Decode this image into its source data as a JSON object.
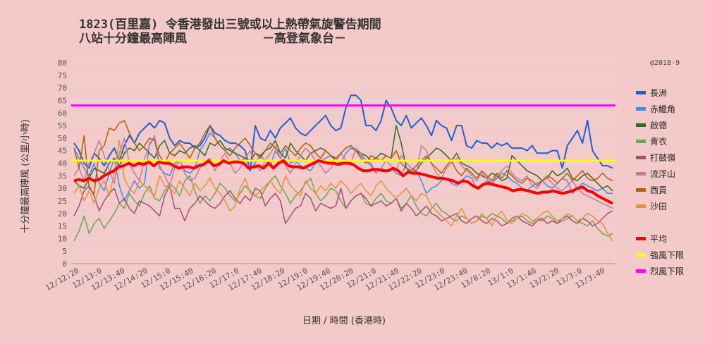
{
  "chart_data": {
    "type": "line",
    "title": "1823(百里嘉) 令香港發出三號或以上熱帶氣旋警告期間",
    "subtitle": "八站十分鐘最高陣風",
    "source": "－高登氣象台－",
    "copyright": "@2018-9",
    "xlabel": "日期 / 時間 (香港時)",
    "ylabel": "十分鐘最高陣風 (公里/小時)",
    "ylim": [
      0,
      80
    ],
    "yticks": [
      0,
      5,
      10,
      15,
      20,
      25,
      30,
      35,
      40,
      45,
      50,
      55,
      60,
      65,
      70,
      75,
      80
    ],
    "grid": true,
    "legend_position": "right",
    "xticks": [
      "12/12:20",
      "12/13:0",
      "12/13:40",
      "12/14:20",
      "12/15:0",
      "12/15:40",
      "12/16:20",
      "12/17:0",
      "12/17:40",
      "12/18:20",
      "12/19:0",
      "12/19:40",
      "12/20:20",
      "12/21:0",
      "12/21:40",
      "12/22:20",
      "12/23:0",
      "12/23:40",
      "13/0:20",
      "13/1:0",
      "13/1:40",
      "13/2:20",
      "13/3:0",
      "13/3:40"
    ],
    "series": [
      {
        "name": "長洲",
        "color": "#1f5fd6",
        "width": 2,
        "values": [
          48,
          45,
          40,
          38,
          44,
          42,
          39,
          43,
          46,
          41,
          47,
          51,
          48,
          52,
          54,
          56,
          54,
          57,
          56,
          50,
          47,
          49,
          48,
          48,
          46,
          47,
          50,
          55,
          52,
          51,
          49,
          48,
          48,
          47,
          45,
          37,
          55,
          50,
          49,
          53,
          50,
          54,
          56,
          58,
          54,
          52,
          51,
          53,
          55,
          57,
          59,
          55,
          53,
          54,
          62,
          67,
          67,
          65,
          55,
          55,
          53,
          57,
          65,
          62,
          57,
          55,
          59,
          54,
          56,
          58,
          55,
          51,
          57,
          55,
          54,
          49,
          55,
          55,
          47,
          46,
          49,
          48,
          48,
          46,
          48,
          47,
          48,
          46,
          46,
          46,
          45,
          47,
          44,
          44,
          44,
          45,
          45,
          38,
          47,
          50,
          53,
          48,
          57,
          45,
          42,
          39,
          39,
          38
        ]
      },
      {
        "name": "赤鱲角",
        "color": "#4a86e8",
        "width": 1.5,
        "values": [
          46,
          42,
          38,
          35,
          40,
          32,
          29,
          36,
          42,
          31,
          25,
          29,
          33,
          30,
          32,
          48,
          50,
          38,
          36,
          35,
          40,
          41,
          37,
          36,
          38,
          45,
          48,
          52,
          50,
          47,
          45,
          46,
          44,
          41,
          42,
          38,
          40,
          43,
          41,
          39,
          45,
          42,
          46,
          40,
          41,
          39,
          38,
          37,
          40,
          41,
          42,
          43,
          41,
          40,
          44,
          46,
          45,
          43,
          41,
          39,
          36,
          38,
          37,
          38,
          36,
          35,
          40,
          38,
          37,
          33,
          28,
          30,
          31,
          33,
          34,
          32,
          31,
          33,
          35,
          34,
          30,
          31,
          33,
          32,
          34,
          36,
          35,
          33,
          32,
          30,
          29,
          31,
          32,
          33,
          31,
          30,
          32,
          34,
          33,
          28,
          30,
          32,
          31,
          30,
          29,
          30,
          28,
          28
        ]
      },
      {
        "name": "啟德",
        "color": "#2e6b1f",
        "width": 1.5,
        "values": [
          33,
          31,
          30,
          34,
          38,
          37,
          36,
          40,
          42,
          39,
          44,
          46,
          45,
          48,
          46,
          44,
          42,
          47,
          49,
          44,
          43,
          45,
          44,
          46,
          47,
          45,
          43,
          48,
          47,
          49,
          46,
          45,
          44,
          43,
          42,
          41,
          44,
          43,
          45,
          46,
          49,
          44,
          42,
          48,
          45,
          43,
          41,
          44,
          45,
          46,
          45,
          43,
          42,
          44,
          46,
          47,
          45,
          44,
          43,
          41,
          42,
          44,
          43,
          42,
          55,
          48,
          38,
          36,
          37,
          40,
          42,
          44,
          46,
          45,
          43,
          41,
          44,
          40,
          39,
          38,
          36,
          35,
          34,
          36,
          35,
          33,
          34,
          43,
          41,
          39,
          37,
          36,
          35,
          33,
          34,
          37,
          35,
          36,
          38,
          34,
          33,
          35,
          36,
          34,
          32,
          30,
          31,
          29
        ]
      },
      {
        "name": "青衣",
        "color": "#6aa84f",
        "width": 1.5,
        "values": [
          9,
          13,
          19,
          12,
          16,
          18,
          14,
          17,
          20,
          24,
          22,
          28,
          25,
          23,
          28,
          31,
          26,
          25,
          29,
          32,
          30,
          27,
          33,
          35,
          29,
          24,
          27,
          25,
          28,
          32,
          30,
          27,
          25,
          28,
          31,
          29,
          27,
          26,
          30,
          33,
          35,
          31,
          28,
          24,
          27,
          29,
          32,
          34,
          28,
          25,
          27,
          30,
          29,
          25,
          22,
          25,
          27,
          28,
          24,
          23,
          26,
          28,
          25,
          24,
          26,
          22,
          24,
          27,
          23,
          20,
          19,
          22,
          24,
          21,
          20,
          18,
          17,
          19,
          18,
          16,
          17,
          19,
          18,
          20,
          19,
          18,
          16,
          17,
          18,
          19,
          17,
          16,
          18,
          17,
          19,
          18,
          16,
          17,
          18,
          19,
          17,
          16,
          15,
          17,
          14,
          12,
          11,
          12
        ]
      },
      {
        "name": "打鼓嶺",
        "color": "#a64d79",
        "width": 1.5,
        "values": [
          19,
          23,
          29,
          31,
          27,
          21,
          25,
          28,
          30,
          24,
          26,
          22,
          20,
          25,
          24,
          23,
          21,
          19,
          27,
          31,
          22,
          22,
          17,
          22,
          24,
          27,
          25,
          23,
          22,
          24,
          27,
          29,
          26,
          24,
          27,
          25,
          30,
          29,
          23,
          26,
          28,
          25,
          16,
          19,
          22,
          23,
          28,
          26,
          21,
          24,
          23,
          22,
          23,
          30,
          22,
          25,
          27,
          28,
          26,
          23,
          24,
          25,
          23,
          24,
          26,
          21,
          24,
          22,
          19,
          21,
          23,
          20,
          19,
          17,
          18,
          19,
          20,
          17,
          16,
          18,
          19,
          17,
          16,
          18,
          17,
          15,
          16,
          18,
          19,
          17,
          16,
          15,
          17,
          18,
          16,
          17,
          16,
          18,
          19,
          17,
          16,
          18,
          17,
          15,
          16,
          18,
          20,
          21
        ]
      },
      {
        "name": "流浮山",
        "color": "#c27ba0",
        "width": 1.5,
        "values": [
          35,
          38,
          33,
          40,
          44,
          49,
          43,
          37,
          32,
          44,
          50,
          40,
          36,
          33,
          42,
          47,
          51,
          39,
          35,
          31,
          38,
          41,
          36,
          33,
          34,
          38,
          40,
          42,
          37,
          41,
          44,
          40,
          36,
          38,
          42,
          45,
          39,
          37,
          41,
          44,
          47,
          42,
          39,
          36,
          40,
          43,
          46,
          44,
          41,
          39,
          36,
          38,
          42,
          44,
          41,
          40,
          46,
          44,
          41,
          40,
          36,
          38,
          41,
          39,
          37,
          43,
          40,
          38,
          36,
          47,
          45,
          40,
          36,
          34,
          38,
          40,
          42,
          39,
          37,
          35,
          33,
          36,
          34,
          32,
          35,
          37,
          39,
          36,
          34,
          33,
          35,
          31,
          30,
          33,
          34,
          32,
          30,
          29,
          31,
          33,
          30,
          28,
          27,
          26,
          25,
          24,
          23,
          22
        ]
      },
      {
        "name": "西貢",
        "color": "#b45f06",
        "width": 1.5,
        "values": [
          46,
          38,
          51,
          30,
          28,
          45,
          47,
          54,
          53,
          56,
          57,
          52,
          48,
          45,
          47,
          50,
          49,
          43,
          40,
          44,
          46,
          48,
          45,
          42,
          46,
          48,
          52,
          55,
          50,
          47,
          45,
          43,
          46,
          48,
          50,
          47,
          44,
          42,
          45,
          48,
          46,
          44,
          47,
          45,
          43,
          46,
          48,
          47,
          44,
          42,
          45,
          43,
          41,
          44,
          46,
          47,
          45,
          42,
          40,
          43,
          42,
          41,
          43,
          42,
          45,
          40,
          38,
          37,
          39,
          41,
          43,
          40,
          38,
          36,
          39,
          41,
          37,
          35,
          38,
          36,
          34,
          37,
          35,
          33,
          36,
          34,
          37,
          35,
          33,
          32,
          34,
          33,
          31,
          33,
          35,
          34,
          32,
          34,
          36,
          33,
          35,
          37,
          34,
          33,
          34,
          36,
          34,
          33
        ]
      },
      {
        "name": "沙田",
        "color": "#e69138",
        "width": 1.5,
        "values": [
          28,
          31,
          25,
          29,
          24,
          30,
          33,
          27,
          36,
          49,
          34,
          30,
          28,
          33,
          31,
          29,
          27,
          35,
          31,
          30,
          28,
          33,
          30,
          27,
          32,
          29,
          31,
          34,
          30,
          28,
          25,
          21,
          23,
          30,
          34,
          28,
          27,
          29,
          31,
          33,
          30,
          28,
          35,
          31,
          29,
          27,
          33,
          30,
          28,
          31,
          29,
          32,
          30,
          33,
          31,
          28,
          30,
          32,
          29,
          27,
          31,
          33,
          30,
          28,
          26,
          28,
          30,
          27,
          25,
          28,
          27,
          23,
          21,
          19,
          17,
          15,
          19,
          22,
          18,
          16,
          17,
          20,
          18,
          15,
          19,
          21,
          17,
          16,
          18,
          20,
          19,
          17,
          18,
          20,
          21,
          19,
          17,
          18,
          20,
          19,
          17,
          18,
          20,
          19,
          17,
          16,
          12,
          9
        ]
      },
      {
        "name": "平均",
        "color": "#ff0000",
        "width": 4,
        "values": [
          33,
          33.5,
          33,
          34,
          33,
          33.5,
          35,
          36,
          37,
          38.5,
          39,
          40,
          39,
          40,
          39.5,
          40.5,
          39,
          40.5,
          40,
          40,
          39,
          38,
          38.5,
          38.5,
          38,
          39,
          39.5,
          41,
          39,
          39.5,
          41,
          40,
          40.5,
          40.5,
          40,
          38,
          38.5,
          39,
          38,
          40,
          38,
          40,
          41,
          39,
          38.5,
          38.5,
          38,
          39,
          40,
          41,
          40.5,
          40,
          40,
          39.5,
          40,
          40,
          39.5,
          38,
          37,
          37,
          37.5,
          37.5,
          37,
          37,
          38,
          37,
          35,
          36.5,
          36,
          36,
          35.5,
          35,
          34.5,
          34,
          34,
          33.5,
          33,
          32,
          33,
          32.5,
          31,
          30,
          31.5,
          32,
          31.5,
          31,
          30.5,
          30,
          29,
          29.5,
          29.5,
          29,
          28.5,
          28,
          28.5,
          28.5,
          29,
          28.5,
          28,
          28.5,
          29,
          30,
          30.5,
          29,
          28.5,
          27,
          26,
          25,
          24
        ]
      },
      {
        "name": "強風下限",
        "color": "#ffff00",
        "width": 3,
        "constant": 41
      },
      {
        "name": "烈風下限",
        "color": "#ff00ff",
        "width": 3,
        "constant": 63
      }
    ]
  }
}
